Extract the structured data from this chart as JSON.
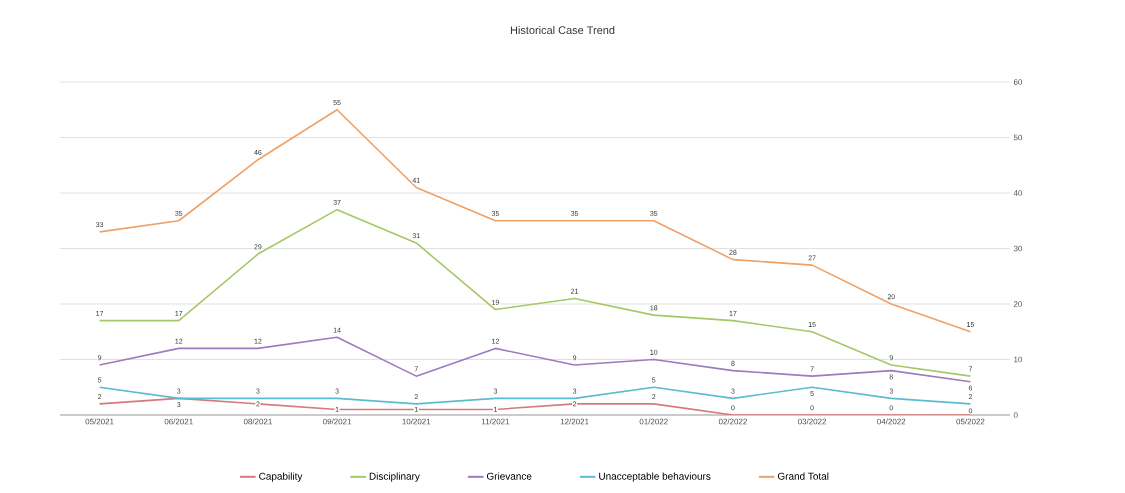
{
  "chart_data": {
    "type": "line",
    "title": "Historical Case Trend",
    "categories": [
      "05/2021",
      "06/2021",
      "08/2021",
      "09/2021",
      "10/2021",
      "11/2021",
      "12/2021",
      "01/2022",
      "02/2022",
      "03/2022",
      "04/2022",
      "05/2022"
    ],
    "series": [
      {
        "name": "Capability",
        "color": "#d9787a",
        "values": [
          2,
          3,
          2,
          1,
          1,
          1,
          2,
          2,
          0,
          0,
          0,
          0
        ]
      },
      {
        "name": "Disciplinary",
        "color": "#a5c864",
        "values": [
          17,
          17,
          29,
          37,
          31,
          19,
          21,
          18,
          17,
          15,
          9,
          7
        ]
      },
      {
        "name": "Grievance",
        "color": "#9c7bbf",
        "values": [
          9,
          12,
          12,
          14,
          7,
          12,
          9,
          10,
          8,
          7,
          8,
          6
        ]
      },
      {
        "name": "Unacceptable behaviours",
        "color": "#5bbcd0",
        "values": [
          5,
          3,
          3,
          3,
          2,
          3,
          3,
          5,
          3,
          5,
          3,
          2
        ]
      },
      {
        "name": "Grand Total",
        "color": "#f0a066",
        "values": [
          33,
          35,
          46,
          55,
          41,
          35,
          35,
          35,
          28,
          27,
          20,
          15
        ]
      }
    ],
    "ylim": [
      0,
      60
    ],
    "yticks": [
      0,
      10,
      20,
      30,
      40,
      50,
      60
    ],
    "grid": "y",
    "legend": "bottom",
    "data_labels": true,
    "marker": "none",
    "line_style": "solid"
  }
}
